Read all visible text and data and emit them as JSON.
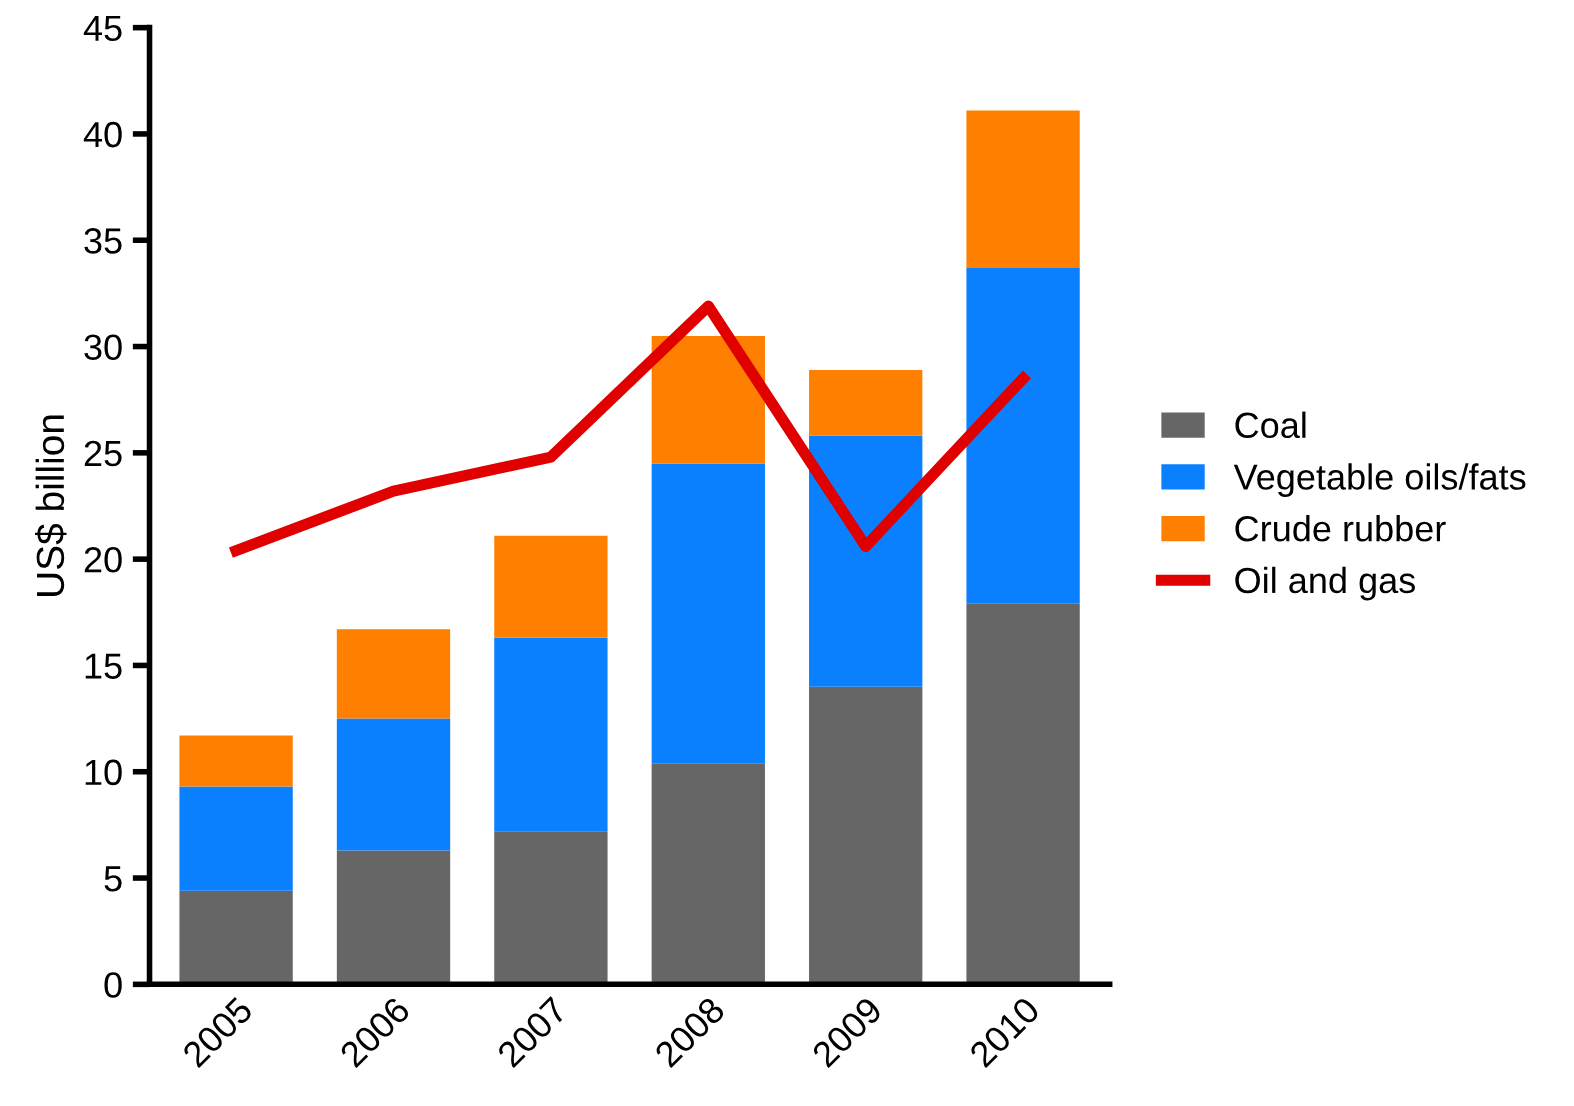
{
  "chart_data": {
    "type": "bar",
    "stacked": true,
    "ylabel": "US$ billion",
    "categories": [
      "2005",
      "2006",
      "2007",
      "2008",
      "2009",
      "2010"
    ],
    "series": [
      {
        "name": "Coal",
        "color": "#666666",
        "values": [
          4.4,
          6.3,
          7.2,
          10.4,
          14.0,
          17.9
        ]
      },
      {
        "name": "Vegetable oils/fats",
        "color": "#0a80ff",
        "values": [
          4.9,
          6.2,
          9.1,
          14.1,
          11.8,
          15.8
        ]
      },
      {
        "name": "Crude rubber",
        "color": "#ff8000",
        "values": [
          2.4,
          4.2,
          4.8,
          6.0,
          3.1,
          7.4
        ]
      },
      {
        "name": "Oil and gas",
        "type": "line",
        "color": "#e00000",
        "values": [
          20.4,
          23.2,
          24.8,
          31.9,
          20.6,
          28.5
        ]
      }
    ],
    "ylim": [
      0,
      45
    ],
    "yticks": [
      0,
      5,
      10,
      15,
      20,
      25,
      30,
      35,
      40,
      45
    ],
    "grid": false,
    "legend": "right",
    "marker": "none",
    "line_style": "solid"
  }
}
